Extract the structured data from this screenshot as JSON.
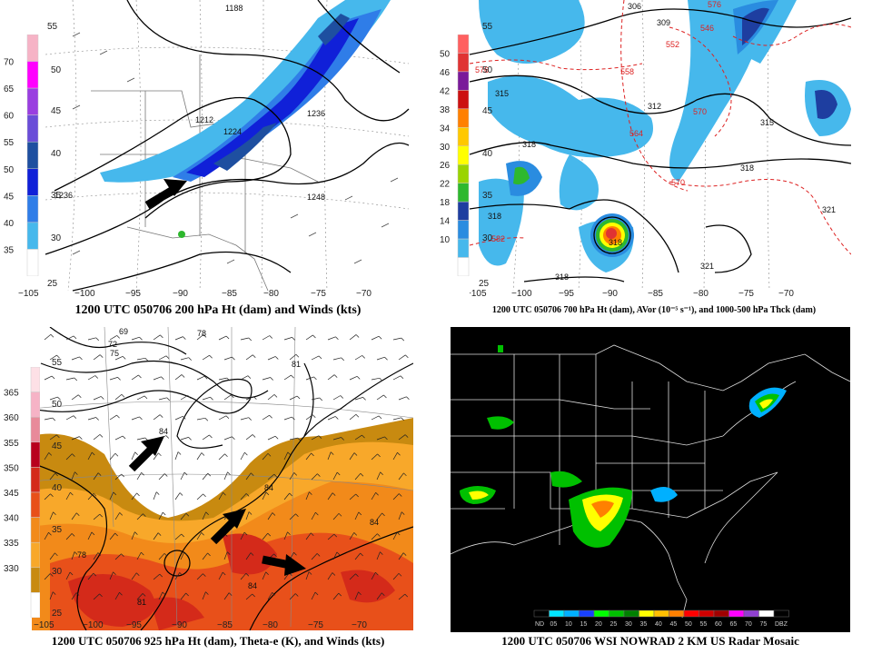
{
  "panels": {
    "p200": {
      "caption": "1200 UTC 050706 200 hPa Ht (dam) and Winds (kts)",
      "legend_labels": [
        "70",
        "65",
        "60",
        "55",
        "50",
        "45",
        "40",
        "35"
      ],
      "legend_colors": [
        "#f6b3c6",
        "#ff00ff",
        "#9a3ee0",
        "#6a4dd8",
        "#1e4fa0",
        "#1020d8",
        "#2f7de8",
        "#46b8ec",
        "#ffffff"
      ],
      "side_labels": [
        "55",
        "50",
        "45",
        "40",
        "35",
        "30",
        "25"
      ],
      "contour_labels": [
        "1188",
        "1212",
        "1224",
        "1236",
        "1236",
        "1248"
      ],
      "lon_labels": [
        "−105",
        "−100",
        "−95",
        "−90",
        "−85",
        "−80",
        "−75",
        "−70"
      ]
    },
    "p700": {
      "caption": "1200 UTC 050706 700 hPa Ht (dam), AVor (10⁻⁵ s⁻¹), and 1000-500 hPa Thck (dam)",
      "legend_labels": [
        "50",
        "46",
        "42",
        "38",
        "34",
        "30",
        "26",
        "22",
        "18",
        "14",
        "10"
      ],
      "legend_colors": [
        "#ff6060",
        "#e03333",
        "#7a1a9a",
        "#cc1111",
        "#ff8000",
        "#ffc800",
        "#ffff00",
        "#9ad400",
        "#2eb82e",
        "#1e3ea0",
        "#2a8ce0",
        "#46b8ec",
        "#ffffff"
      ],
      "side_labels": [
        "55",
        "50",
        "45",
        "40",
        "35",
        "30",
        "25"
      ],
      "contour_labels": [
        "306",
        "309",
        "312",
        "315",
        "315",
        "318",
        "318",
        "318",
        "318",
        "321",
        "321",
        "318"
      ],
      "thickness_labels": [
        "576",
        "546",
        "552",
        "558",
        "564",
        "570",
        "570",
        "576",
        "582"
      ],
      "lon_labels": [
        "−105",
        "−100",
        "−95",
        "−90",
        "−85",
        "−80",
        "−75",
        "−70"
      ]
    },
    "p925": {
      "caption": "1200 UTC 050706 925 hPa Ht (dam), Theta-e (K), and Winds (kts)",
      "legend_labels": [
        "365",
        "360",
        "355",
        "350",
        "345",
        "340",
        "335",
        "330"
      ],
      "legend_colors": [
        "#fde0e6",
        "#f6b3c6",
        "#e88a9a",
        "#b8001e",
        "#d42a1a",
        "#e8501a",
        "#f28a1a",
        "#f8a82a",
        "#c88a10",
        "#ffffff"
      ],
      "side_labels": [
        "55",
        "50",
        "45",
        "40",
        "35",
        "30",
        "25"
      ],
      "contour_labels": [
        "69",
        "72",
        "75",
        "78",
        "81",
        "84",
        "84",
        "78",
        "84",
        "81",
        "78",
        "84"
      ],
      "lon_labels": [
        "−105",
        "−100",
        "−95",
        "−90",
        "−85",
        "−80",
        "−75",
        "−70"
      ]
    },
    "radar": {
      "caption": "1200 UTC 050706 WSI NOWRAD 2 KM US Radar Mosaic",
      "scale_labels": [
        "ND",
        "05",
        "10",
        "15",
        "20",
        "25",
        "30",
        "35",
        "40",
        "45",
        "50",
        "55",
        "60",
        "65",
        "70",
        "75",
        "DBZ"
      ],
      "scale_colors": [
        "#000000",
        "#00e5ff",
        "#00b0ff",
        "#1840ff",
        "#00ff00",
        "#00c000",
        "#008000",
        "#ffff00",
        "#ffc000",
        "#ff8000",
        "#ff0000",
        "#d00000",
        "#a00000",
        "#ff00ff",
        "#9040d0",
        "#ffffff",
        "#000000"
      ]
    }
  },
  "arrows": [
    {
      "panel": "p200",
      "direction": "northeast"
    },
    {
      "panel": "p925",
      "direction": "northeast"
    },
    {
      "panel": "p925",
      "direction": "northeast"
    },
    {
      "panel": "p925",
      "direction": "east"
    }
  ]
}
